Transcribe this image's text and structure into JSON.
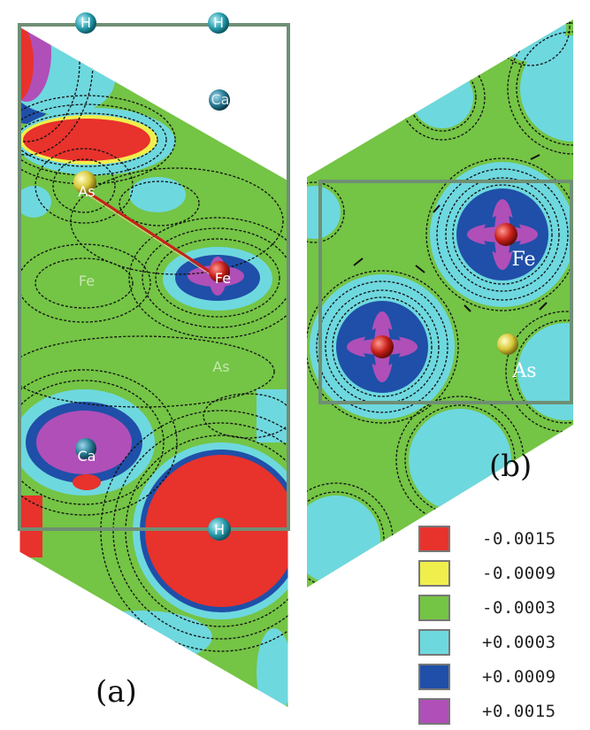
{
  "panels": {
    "a": {
      "label": "(a)",
      "atoms": {
        "h_top_left": "H",
        "h_top_right": "H",
        "ca_top": "Ca",
        "as": "As",
        "fe": "Fe",
        "fe_faint": "Fe",
        "as_faint": "As",
        "ca_bottom": "Ca",
        "h_bottom": "H"
      }
    },
    "b": {
      "label": "(b)",
      "atoms": {
        "fe": "Fe",
        "as": "As"
      }
    }
  },
  "legend": {
    "items": [
      {
        "label": "-0.0015",
        "color": "#e8322c"
      },
      {
        "label": "-0.0009",
        "color": "#f0ee4c"
      },
      {
        "label": "-0.0003",
        "color": "#74c445"
      },
      {
        "label": "+0.0003",
        "color": "#6ed8df"
      },
      {
        "label": "+0.0009",
        "color": "#1f4fa8"
      },
      {
        "label": "+0.0015",
        "color": "#b04fb8"
      }
    ]
  },
  "colors": {
    "green": "#74c445",
    "cyan": "#6ed8df",
    "blue": "#1f4fa8",
    "purple": "#b04fb8",
    "red": "#e8322c",
    "yellow": "#f0ee4c",
    "frame": "#6f8f74",
    "contour": "#111111"
  }
}
